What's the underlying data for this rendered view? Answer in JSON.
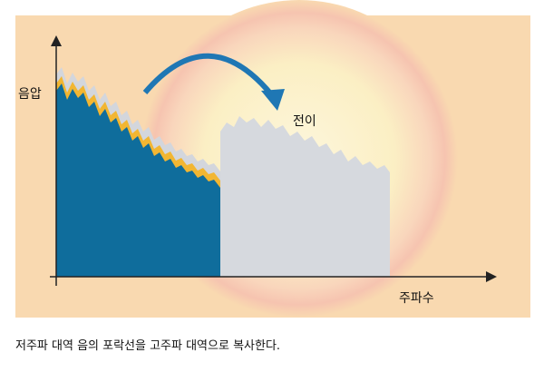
{
  "diagram": {
    "y_axis_label": "음압",
    "x_axis_label": "주파수",
    "arrow_label": "전이"
  },
  "caption": "저주파 대역 음의 포락선을 고주파 대역으로 복사한다."
}
